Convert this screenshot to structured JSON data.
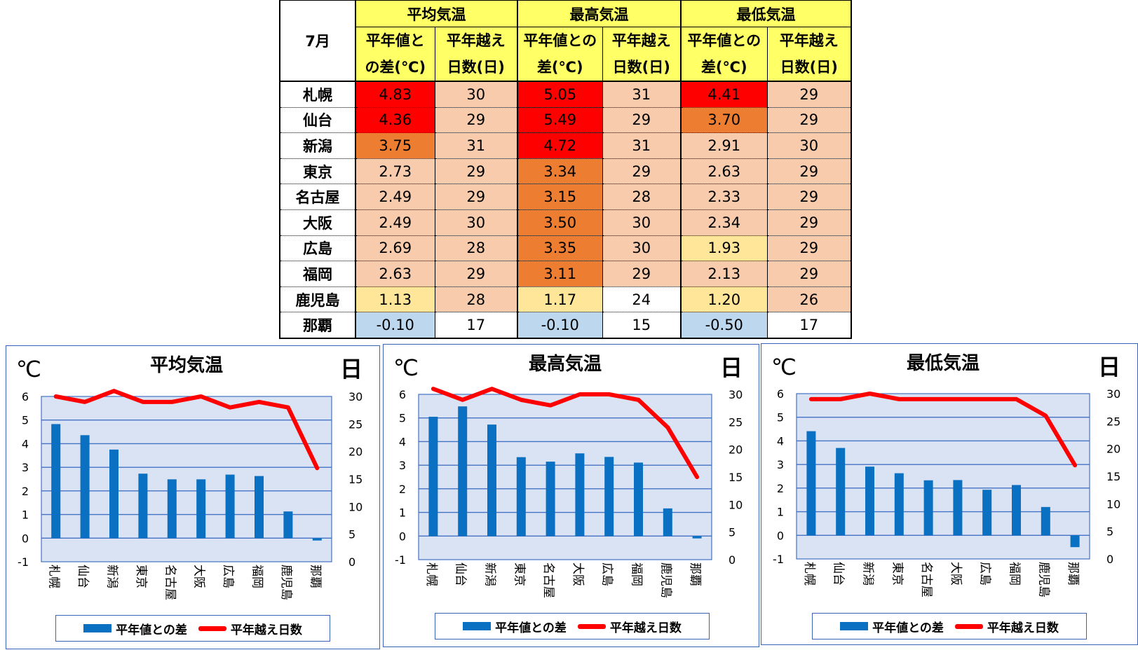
{
  "table": {
    "month_label": "7月",
    "groups": [
      "平均気温",
      "最高気温",
      "最低気温"
    ],
    "subheaders": [
      "平年値と\nの差(℃)",
      "平年越え\n日数(日)",
      "平年値との\n差(℃)",
      "平年越え\n日数(日)",
      "平年値との\n差(℃)",
      "平年越え\n日数(日)"
    ],
    "rows": [
      {
        "city": "札幌",
        "cells": [
          "4.83",
          "30",
          "5.05",
          "31",
          "4.41",
          "29"
        ]
      },
      {
        "city": "仙台",
        "cells": [
          "4.36",
          "29",
          "5.49",
          "29",
          "3.70",
          "29"
        ]
      },
      {
        "city": "新潟",
        "cells": [
          "3.75",
          "31",
          "4.72",
          "31",
          "2.91",
          "30"
        ]
      },
      {
        "city": "東京",
        "cells": [
          "2.73",
          "29",
          "3.34",
          "29",
          "2.63",
          "29"
        ]
      },
      {
        "city": "名古屋",
        "cells": [
          "2.49",
          "29",
          "3.15",
          "28",
          "2.33",
          "29"
        ]
      },
      {
        "city": "大阪",
        "cells": [
          "2.49",
          "30",
          "3.50",
          "30",
          "2.34",
          "29"
        ]
      },
      {
        "city": "広島",
        "cells": [
          "2.69",
          "28",
          "3.35",
          "30",
          "1.93",
          "29"
        ]
      },
      {
        "city": "福岡",
        "cells": [
          "2.63",
          "29",
          "3.11",
          "29",
          "2.13",
          "29"
        ]
      },
      {
        "city": "鹿児島",
        "cells": [
          "1.13",
          "28",
          "1.17",
          "24",
          "1.20",
          "26"
        ]
      },
      {
        "city": "那覇",
        "cells": [
          "-0.10",
          "17",
          "-0.10",
          "15",
          "-0.50",
          "17"
        ]
      }
    ],
    "colors": {
      "red": "#ff0000",
      "orange": "#ed7d31",
      "salmon": "#f8cbad",
      "yellow": "#ffe699",
      "blue": "#bdd7ee",
      "white": "#ffffff"
    },
    "fills": [
      [
        "red",
        "salmon",
        "red",
        "salmon",
        "red",
        "salmon"
      ],
      [
        "red",
        "salmon",
        "red",
        "salmon",
        "orange",
        "salmon"
      ],
      [
        "orange",
        "salmon",
        "red",
        "salmon",
        "salmon",
        "salmon"
      ],
      [
        "salmon",
        "salmon",
        "orange",
        "salmon",
        "salmon",
        "salmon"
      ],
      [
        "salmon",
        "salmon",
        "orange",
        "salmon",
        "salmon",
        "salmon"
      ],
      [
        "salmon",
        "salmon",
        "orange",
        "salmon",
        "salmon",
        "salmon"
      ],
      [
        "salmon",
        "salmon",
        "orange",
        "salmon",
        "yellow",
        "salmon"
      ],
      [
        "salmon",
        "salmon",
        "orange",
        "salmon",
        "salmon",
        "salmon"
      ],
      [
        "yellow",
        "salmon",
        "yellow",
        "white",
        "yellow",
        "salmon"
      ],
      [
        "blue",
        "white",
        "blue",
        "white",
        "blue",
        "white"
      ]
    ]
  },
  "chart_data": [
    {
      "type": "bar",
      "title": "平均気温",
      "left_unit": "℃",
      "right_unit": "日",
      "categories": [
        "札幌",
        "仙台",
        "新潟",
        "東京",
        "名古屋",
        "大阪",
        "広島",
        "福岡",
        "鹿児島",
        "那覇"
      ],
      "series": [
        {
          "name": "平年値との差",
          "kind": "bar",
          "axis": "left",
          "values": [
            4.83,
            4.36,
            3.75,
            2.73,
            2.49,
            2.49,
            2.69,
            2.63,
            1.13,
            -0.1
          ]
        },
        {
          "name": "平年越え日数",
          "kind": "line",
          "axis": "right",
          "values": [
            30,
            29,
            31,
            29,
            29,
            30,
            28,
            29,
            28,
            17
          ]
        }
      ],
      "left_ylim": [
        -1,
        6
      ],
      "left_ticks": [
        "-1",
        "0",
        "1",
        "2",
        "3",
        "4",
        "5",
        "6"
      ],
      "right_ylim": [
        0,
        30
      ],
      "right_ticks": [
        "0",
        "5",
        "10",
        "15",
        "20",
        "25",
        "30"
      ],
      "grid": true,
      "legend": "bottom"
    },
    {
      "type": "bar",
      "title": "最高気温",
      "left_unit": "℃",
      "right_unit": "日",
      "categories": [
        "札幌",
        "仙台",
        "新潟",
        "東京",
        "名古屋",
        "大阪",
        "広島",
        "福岡",
        "鹿児島",
        "那覇"
      ],
      "series": [
        {
          "name": "平年値との差",
          "kind": "bar",
          "axis": "left",
          "values": [
            5.05,
            5.49,
            4.72,
            3.34,
            3.15,
            3.5,
            3.35,
            3.11,
            1.17,
            -0.1
          ]
        },
        {
          "name": "平年越え日数",
          "kind": "line",
          "axis": "right",
          "values": [
            31,
            29,
            31,
            29,
            28,
            30,
            30,
            29,
            24,
            15
          ]
        }
      ],
      "left_ylim": [
        -1,
        6
      ],
      "left_ticks": [
        "-1",
        "0",
        "1",
        "2",
        "3",
        "4",
        "5",
        "6"
      ],
      "right_ylim": [
        0,
        30
      ],
      "right_ticks": [
        "0",
        "5",
        "10",
        "15",
        "20",
        "25",
        "30"
      ],
      "grid": true,
      "legend": "bottom"
    },
    {
      "type": "bar",
      "title": "最低気温",
      "left_unit": "℃",
      "right_unit": "日",
      "categories": [
        "札幌",
        "仙台",
        "新潟",
        "東京",
        "名古屋",
        "大阪",
        "広島",
        "福岡",
        "鹿児島",
        "那覇"
      ],
      "series": [
        {
          "name": "平年値との差",
          "kind": "bar",
          "axis": "left",
          "values": [
            4.41,
            3.7,
            2.91,
            2.63,
            2.33,
            2.34,
            1.93,
            2.13,
            1.2,
            -0.5
          ]
        },
        {
          "name": "平年越え日数",
          "kind": "line",
          "axis": "right",
          "values": [
            29,
            29,
            30,
            29,
            29,
            29,
            29,
            29,
            26,
            17
          ]
        }
      ],
      "left_ylim": [
        -1,
        6
      ],
      "left_ticks": [
        "-1",
        "0",
        "1",
        "2",
        "3",
        "4",
        "5",
        "6"
      ],
      "right_ylim": [
        0,
        30
      ],
      "right_ticks": [
        "0",
        "5",
        "10",
        "15",
        "20",
        "25",
        "30"
      ],
      "grid": true,
      "legend": "bottom"
    }
  ]
}
